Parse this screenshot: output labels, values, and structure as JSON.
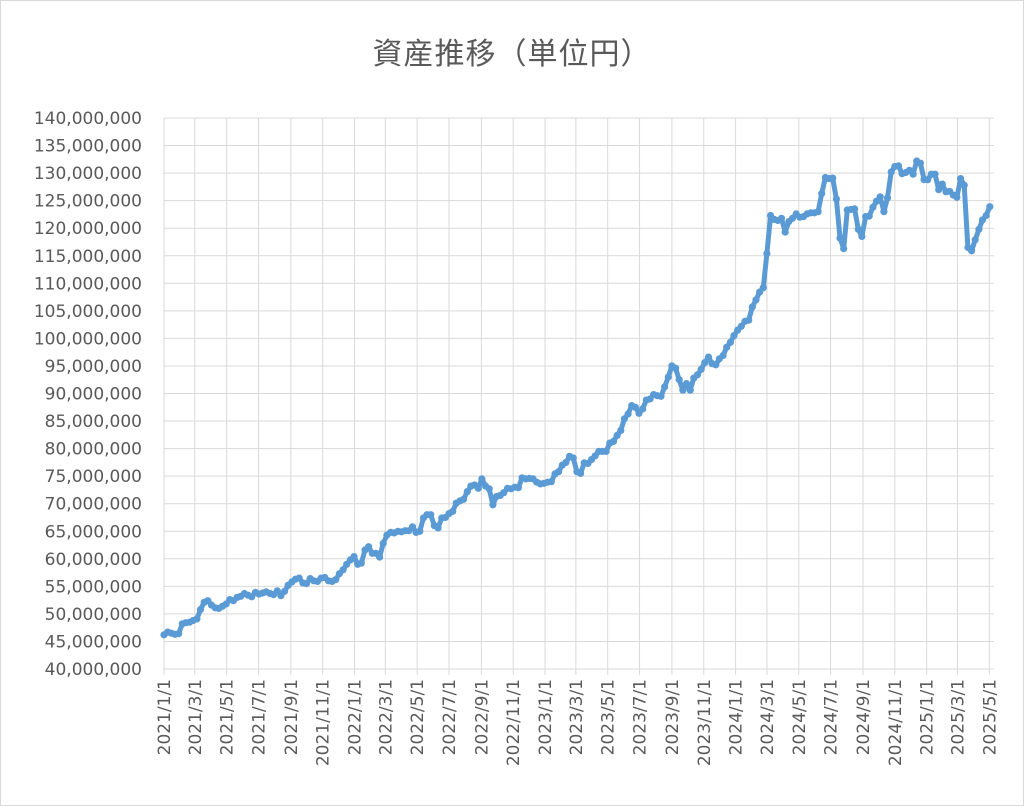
{
  "chart_data": {
    "type": "line",
    "title": "資産推移（単位円）",
    "xlabel": "",
    "ylabel": "",
    "ylim": [
      40000000,
      140000000
    ],
    "ytick_step": 5000000,
    "yticks": [
      "140,000,000",
      "135,000,000",
      "130,000,000",
      "125,000,000",
      "120,000,000",
      "115,000,000",
      "110,000,000",
      "105,000,000",
      "100,000,000",
      "95,000,000",
      "90,000,000",
      "85,000,000",
      "80,000,000",
      "75,000,000",
      "70,000,000",
      "65,000,000",
      "60,000,000",
      "55,000,000",
      "50,000,000",
      "45,000,000",
      "40,000,000"
    ],
    "xlim": [
      "2021-01-01",
      "2025-05-10"
    ],
    "xticks": [
      {
        "date": "2021-01-01",
        "label": "2021/1/1"
      },
      {
        "date": "2021-03-01",
        "label": "2021/3/1"
      },
      {
        "date": "2021-05-01",
        "label": "2021/5/1"
      },
      {
        "date": "2021-07-01",
        "label": "2021/7/1"
      },
      {
        "date": "2021-09-01",
        "label": "2021/9/1"
      },
      {
        "date": "2021-11-01",
        "label": "2021/11/1"
      },
      {
        "date": "2022-01-01",
        "label": "2022/1/1"
      },
      {
        "date": "2022-03-01",
        "label": "2022/3/1"
      },
      {
        "date": "2022-05-01",
        "label": "2022/5/1"
      },
      {
        "date": "2022-07-01",
        "label": "2022/7/1"
      },
      {
        "date": "2022-09-01",
        "label": "2022/9/1"
      },
      {
        "date": "2022-11-01",
        "label": "2022/11/1"
      },
      {
        "date": "2023-01-01",
        "label": "2023/1/1"
      },
      {
        "date": "2023-03-01",
        "label": "2023/3/1"
      },
      {
        "date": "2023-05-01",
        "label": "2023/5/1"
      },
      {
        "date": "2023-07-01",
        "label": "2023/7/1"
      },
      {
        "date": "2023-09-01",
        "label": "2023/9/1"
      },
      {
        "date": "2023-11-01",
        "label": "2023/11/1"
      },
      {
        "date": "2024-01-01",
        "label": "2024/1/1"
      },
      {
        "date": "2024-03-01",
        "label": "2024/3/1"
      },
      {
        "date": "2024-05-01",
        "label": "2024/5/1"
      },
      {
        "date": "2024-07-01",
        "label": "2024/7/1"
      },
      {
        "date": "2024-09-01",
        "label": "2024/9/1"
      },
      {
        "date": "2024-11-01",
        "label": "2024/11/1"
      },
      {
        "date": "2025-01-01",
        "label": "2025/1/1"
      },
      {
        "date": "2025-03-01",
        "label": "2025/3/1"
      },
      {
        "date": "2025-05-01",
        "label": "2025/5/1"
      }
    ],
    "grid": true,
    "legend": "none",
    "colors": {
      "line": "#5b9bd5",
      "grid": "#d9d9d9",
      "text": "#595959"
    },
    "series": [
      {
        "points": [
          [
            "2021-01-01",
            46200000
          ],
          [
            "2021-01-08",
            46700000
          ],
          [
            "2021-01-15",
            46500000
          ],
          [
            "2021-01-22",
            46300000
          ],
          [
            "2021-01-29",
            46400000
          ],
          [
            "2021-02-05",
            48200000
          ],
          [
            "2021-02-12",
            48400000
          ],
          [
            "2021-02-19",
            48500000
          ],
          [
            "2021-02-26",
            48800000
          ],
          [
            "2021-03-05",
            49100000
          ],
          [
            "2021-03-12",
            50800000
          ],
          [
            "2021-03-19",
            52100000
          ],
          [
            "2021-03-26",
            52400000
          ],
          [
            "2021-04-02",
            51600000
          ],
          [
            "2021-04-09",
            51100000
          ],
          [
            "2021-04-16",
            51000000
          ],
          [
            "2021-04-23",
            51400000
          ],
          [
            "2021-04-30",
            51800000
          ],
          [
            "2021-05-07",
            52600000
          ],
          [
            "2021-05-14",
            52400000
          ],
          [
            "2021-05-21",
            53000000
          ],
          [
            "2021-05-28",
            53200000
          ],
          [
            "2021-06-04",
            53700000
          ],
          [
            "2021-06-11",
            53400000
          ],
          [
            "2021-06-18",
            53100000
          ],
          [
            "2021-06-25",
            53900000
          ],
          [
            "2021-07-02",
            53600000
          ],
          [
            "2021-07-09",
            53800000
          ],
          [
            "2021-07-16",
            54000000
          ],
          [
            "2021-07-23",
            53700000
          ],
          [
            "2021-07-30",
            53500000
          ],
          [
            "2021-08-06",
            54200000
          ],
          [
            "2021-08-13",
            53300000
          ],
          [
            "2021-08-20",
            54100000
          ],
          [
            "2021-08-27",
            55200000
          ],
          [
            "2021-09-03",
            55800000
          ],
          [
            "2021-09-10",
            56300000
          ],
          [
            "2021-09-17",
            56500000
          ],
          [
            "2021-09-24",
            55600000
          ],
          [
            "2021-10-01",
            55500000
          ],
          [
            "2021-10-08",
            56400000
          ],
          [
            "2021-10-15",
            56000000
          ],
          [
            "2021-10-22",
            55900000
          ],
          [
            "2021-10-29",
            56500000
          ],
          [
            "2021-11-05",
            56600000
          ],
          [
            "2021-11-12",
            56000000
          ],
          [
            "2021-11-19",
            55900000
          ],
          [
            "2021-11-26",
            56200000
          ],
          [
            "2021-12-03",
            57300000
          ],
          [
            "2021-12-10",
            58000000
          ],
          [
            "2021-12-17",
            59000000
          ],
          [
            "2021-12-24",
            59800000
          ],
          [
            "2021-12-31",
            60400000
          ],
          [
            "2022-01-07",
            59000000
          ],
          [
            "2022-01-14",
            59200000
          ],
          [
            "2022-01-21",
            61600000
          ],
          [
            "2022-01-28",
            62200000
          ],
          [
            "2022-02-04",
            61000000
          ],
          [
            "2022-02-11",
            61000000
          ],
          [
            "2022-02-18",
            60300000
          ],
          [
            "2022-02-25",
            62800000
          ],
          [
            "2022-03-04",
            64300000
          ],
          [
            "2022-03-11",
            64800000
          ],
          [
            "2022-03-18",
            64700000
          ],
          [
            "2022-03-25",
            65000000
          ],
          [
            "2022-04-01",
            64900000
          ],
          [
            "2022-04-08",
            65100000
          ],
          [
            "2022-04-15",
            65100000
          ],
          [
            "2022-04-22",
            65800000
          ],
          [
            "2022-04-29",
            64800000
          ],
          [
            "2022-05-06",
            65000000
          ],
          [
            "2022-05-13",
            67400000
          ],
          [
            "2022-05-20",
            68000000
          ],
          [
            "2022-05-27",
            68000000
          ],
          [
            "2022-06-03",
            66000000
          ],
          [
            "2022-06-10",
            65600000
          ],
          [
            "2022-06-17",
            67400000
          ],
          [
            "2022-06-24",
            67500000
          ],
          [
            "2022-07-01",
            68200000
          ],
          [
            "2022-07-08",
            68600000
          ],
          [
            "2022-07-15",
            70100000
          ],
          [
            "2022-07-22",
            70500000
          ],
          [
            "2022-07-29",
            70800000
          ],
          [
            "2022-08-05",
            72200000
          ],
          [
            "2022-08-12",
            73200000
          ],
          [
            "2022-08-19",
            73400000
          ],
          [
            "2022-08-26",
            72800000
          ],
          [
            "2022-09-02",
            74500000
          ],
          [
            "2022-09-09",
            73200000
          ],
          [
            "2022-09-16",
            72700000
          ],
          [
            "2022-09-23",
            69800000
          ],
          [
            "2022-09-30",
            71300000
          ],
          [
            "2022-10-07",
            71500000
          ],
          [
            "2022-10-14",
            72000000
          ],
          [
            "2022-10-21",
            72800000
          ],
          [
            "2022-10-28",
            72700000
          ],
          [
            "2022-11-04",
            73000000
          ],
          [
            "2022-11-11",
            72900000
          ],
          [
            "2022-11-18",
            74700000
          ],
          [
            "2022-11-25",
            74500000
          ],
          [
            "2022-12-02",
            74600000
          ],
          [
            "2022-12-09",
            74500000
          ],
          [
            "2022-12-16",
            73900000
          ],
          [
            "2022-12-23",
            73600000
          ],
          [
            "2022-12-30",
            73700000
          ],
          [
            "2023-01-06",
            73900000
          ],
          [
            "2023-01-13",
            74000000
          ],
          [
            "2023-01-20",
            75400000
          ],
          [
            "2023-01-27",
            75800000
          ],
          [
            "2023-02-03",
            77000000
          ],
          [
            "2023-02-10",
            77500000
          ],
          [
            "2023-02-17",
            78600000
          ],
          [
            "2023-02-24",
            78300000
          ],
          [
            "2023-03-03",
            75800000
          ],
          [
            "2023-03-10",
            75500000
          ],
          [
            "2023-03-17",
            77400000
          ],
          [
            "2023-03-24",
            77300000
          ],
          [
            "2023-03-31",
            78000000
          ],
          [
            "2023-04-07",
            78700000
          ],
          [
            "2023-04-14",
            79500000
          ],
          [
            "2023-04-21",
            79500000
          ],
          [
            "2023-04-28",
            79500000
          ],
          [
            "2023-05-05",
            81000000
          ],
          [
            "2023-05-12",
            81300000
          ],
          [
            "2023-05-19",
            82400000
          ],
          [
            "2023-05-26",
            83300000
          ],
          [
            "2023-06-02",
            85400000
          ],
          [
            "2023-06-09",
            86300000
          ],
          [
            "2023-06-16",
            87800000
          ],
          [
            "2023-06-23",
            87500000
          ],
          [
            "2023-06-30",
            86400000
          ],
          [
            "2023-07-07",
            87200000
          ],
          [
            "2023-07-14",
            88800000
          ],
          [
            "2023-07-21",
            89000000
          ],
          [
            "2023-07-28",
            89800000
          ],
          [
            "2023-08-04",
            89600000
          ],
          [
            "2023-08-11",
            89500000
          ],
          [
            "2023-08-18",
            91200000
          ],
          [
            "2023-08-25",
            93000000
          ],
          [
            "2023-09-01",
            95000000
          ],
          [
            "2023-09-08",
            94600000
          ],
          [
            "2023-09-15",
            92500000
          ],
          [
            "2023-09-22",
            90600000
          ],
          [
            "2023-09-29",
            91800000
          ],
          [
            "2023-10-06",
            90600000
          ],
          [
            "2023-10-13",
            92800000
          ],
          [
            "2023-10-20",
            93400000
          ],
          [
            "2023-10-27",
            94400000
          ],
          [
            "2023-11-03",
            95600000
          ],
          [
            "2023-11-10",
            96600000
          ],
          [
            "2023-11-17",
            95400000
          ],
          [
            "2023-11-24",
            95200000
          ],
          [
            "2023-12-01",
            96300000
          ],
          [
            "2023-12-08",
            96900000
          ],
          [
            "2023-12-15",
            98400000
          ],
          [
            "2023-12-22",
            99300000
          ],
          [
            "2023-12-29",
            100500000
          ],
          [
            "2024-01-05",
            101500000
          ],
          [
            "2024-01-12",
            102200000
          ],
          [
            "2024-01-19",
            103100000
          ],
          [
            "2024-01-26",
            103300000
          ],
          [
            "2024-02-02",
            105700000
          ],
          [
            "2024-02-09",
            107000000
          ],
          [
            "2024-02-16",
            108400000
          ],
          [
            "2024-02-23",
            109200000
          ],
          [
            "2024-03-01",
            115400000
          ],
          [
            "2024-03-08",
            122300000
          ],
          [
            "2024-03-15",
            121600000
          ],
          [
            "2024-03-22",
            121400000
          ],
          [
            "2024-03-29",
            121800000
          ],
          [
            "2024-04-05",
            119300000
          ],
          [
            "2024-04-12",
            121200000
          ],
          [
            "2024-04-19",
            121800000
          ],
          [
            "2024-04-26",
            122600000
          ],
          [
            "2024-05-03",
            122000000
          ],
          [
            "2024-05-10",
            122100000
          ],
          [
            "2024-05-17",
            122600000
          ],
          [
            "2024-05-24",
            122800000
          ],
          [
            "2024-05-31",
            122800000
          ],
          [
            "2024-06-07",
            123000000
          ],
          [
            "2024-06-14",
            126300000
          ],
          [
            "2024-06-21",
            129200000
          ],
          [
            "2024-06-28",
            129000000
          ],
          [
            "2024-07-05",
            129100000
          ],
          [
            "2024-07-12",
            125300000
          ],
          [
            "2024-07-19",
            118200000
          ],
          [
            "2024-07-26",
            116300000
          ],
          [
            "2024-08-02",
            123300000
          ],
          [
            "2024-08-09",
            123400000
          ],
          [
            "2024-08-16",
            123500000
          ],
          [
            "2024-08-23",
            119800000
          ],
          [
            "2024-08-30",
            118500000
          ],
          [
            "2024-09-06",
            122100000
          ],
          [
            "2024-09-13",
            122200000
          ],
          [
            "2024-09-20",
            123800000
          ],
          [
            "2024-09-27",
            124900000
          ],
          [
            "2024-10-04",
            125700000
          ],
          [
            "2024-10-11",
            123000000
          ],
          [
            "2024-10-18",
            125500000
          ],
          [
            "2024-10-25",
            130200000
          ],
          [
            "2024-11-01",
            131200000
          ],
          [
            "2024-11-08",
            131300000
          ],
          [
            "2024-11-15",
            129900000
          ],
          [
            "2024-11-22",
            130100000
          ],
          [
            "2024-11-29",
            130500000
          ],
          [
            "2024-12-06",
            129800000
          ],
          [
            "2024-12-13",
            132200000
          ],
          [
            "2024-12-20",
            131800000
          ],
          [
            "2024-12-27",
            128800000
          ],
          [
            "2025-01-03",
            128800000
          ],
          [
            "2025-01-10",
            129800000
          ],
          [
            "2025-01-17",
            129800000
          ],
          [
            "2025-01-24",
            127000000
          ],
          [
            "2025-01-31",
            128000000
          ],
          [
            "2025-02-07",
            126600000
          ],
          [
            "2025-02-14",
            126700000
          ],
          [
            "2025-02-21",
            126000000
          ],
          [
            "2025-02-28",
            125600000
          ],
          [
            "2025-03-07",
            129000000
          ],
          [
            "2025-03-14",
            127800000
          ],
          [
            "2025-03-21",
            116500000
          ],
          [
            "2025-03-28",
            115900000
          ],
          [
            "2025-04-04",
            117900000
          ],
          [
            "2025-04-11",
            119800000
          ],
          [
            "2025-04-18",
            121500000
          ],
          [
            "2025-04-25",
            122300000
          ],
          [
            "2025-05-02",
            123900000
          ]
        ]
      }
    ]
  }
}
